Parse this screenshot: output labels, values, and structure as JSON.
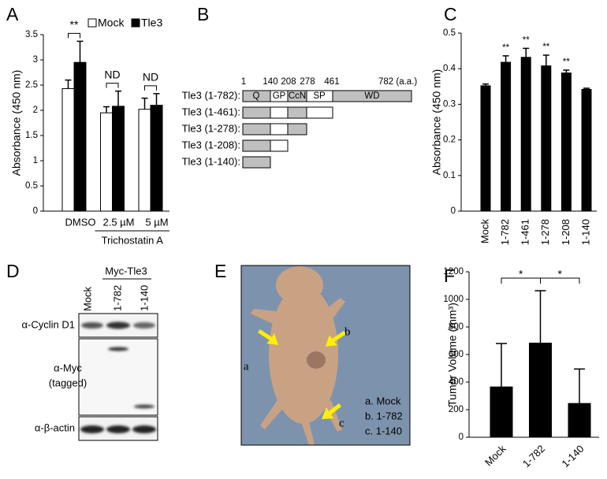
{
  "chart_data": [
    {
      "type": "bar",
      "panel": "A",
      "ylabel": "Absorbance (450 nm)",
      "categories": [
        "DMSO",
        "2.5 µM",
        "5 µM"
      ],
      "group_label": "Trichostatin A",
      "series": [
        {
          "name": "Mock",
          "color": "#ffffff",
          "values": [
            2.43,
            1.95,
            2.02
          ],
          "errors": [
            0.17,
            0.12,
            0.22
          ]
        },
        {
          "name": "Tle3",
          "color": "#000000",
          "values": [
            2.95,
            2.08,
            2.1
          ],
          "errors": [
            0.42,
            0.3,
            0.23
          ]
        }
      ],
      "ylim": [
        0,
        3.5
      ],
      "yticks": [
        0,
        0.5,
        1,
        1.5,
        2,
        2.5,
        3,
        3.5
      ],
      "annotations": [
        "**",
        "ND",
        "ND"
      ]
    },
    {
      "type": "bar",
      "panel": "C",
      "ylabel": "Absorbance (450 nm)",
      "categories": [
        "Mock",
        "1-782",
        "1-461",
        "1-278",
        "1-208",
        "1-140"
      ],
      "color": "#000000",
      "values": [
        0.352,
        0.418,
        0.432,
        0.408,
        0.388,
        0.342
      ],
      "errors": [
        0.005,
        0.018,
        0.025,
        0.03,
        0.008,
        0.003
      ],
      "ylim": [
        0,
        0.5
      ],
      "yticks": [
        0,
        0.1,
        0.2,
        0.3,
        0.4,
        0.5
      ],
      "annotations": [
        null,
        "**",
        "**",
        "**",
        "**",
        null
      ]
    },
    {
      "type": "bar",
      "panel": "F",
      "ylabel": "Tumor Volume (mm³)",
      "categories": [
        "Mock",
        "1-782",
        "1-140"
      ],
      "color": "#000000",
      "values": [
        365,
        683,
        245
      ],
      "errors": [
        315,
        380,
        250
      ],
      "ylim": [
        0,
        1200
      ],
      "yticks": [
        0,
        200,
        400,
        600,
        800,
        1000,
        1200
      ],
      "brackets": [
        "*",
        "*"
      ]
    }
  ],
  "diagram": {
    "panel": "B",
    "scale": [
      "1",
      "140",
      "208",
      "278",
      "461",
      "782 (a.a.)"
    ],
    "domains": [
      "Q",
      "GP",
      "CcN",
      "SP",
      "WD"
    ],
    "constructs": [
      "Tle3 (1-782):",
      "Tle3 (1-461):",
      "Tle3 (1-278):",
      "Tle3 (1-208):",
      "Tle3 (1-140):"
    ]
  },
  "blot": {
    "panel": "D",
    "group": "Myc-Tle3",
    "lanes": [
      "Mock",
      "1-782",
      "1-140"
    ],
    "probes": [
      "α-Cyclin D1",
      "α-Myc",
      "(tagged)",
      "α-β-actin"
    ]
  },
  "photo": {
    "panel": "E",
    "markers": [
      "a",
      "b",
      "c"
    ],
    "legend": [
      "a. Mock",
      "b. 1-782",
      "c. 1-140"
    ]
  }
}
